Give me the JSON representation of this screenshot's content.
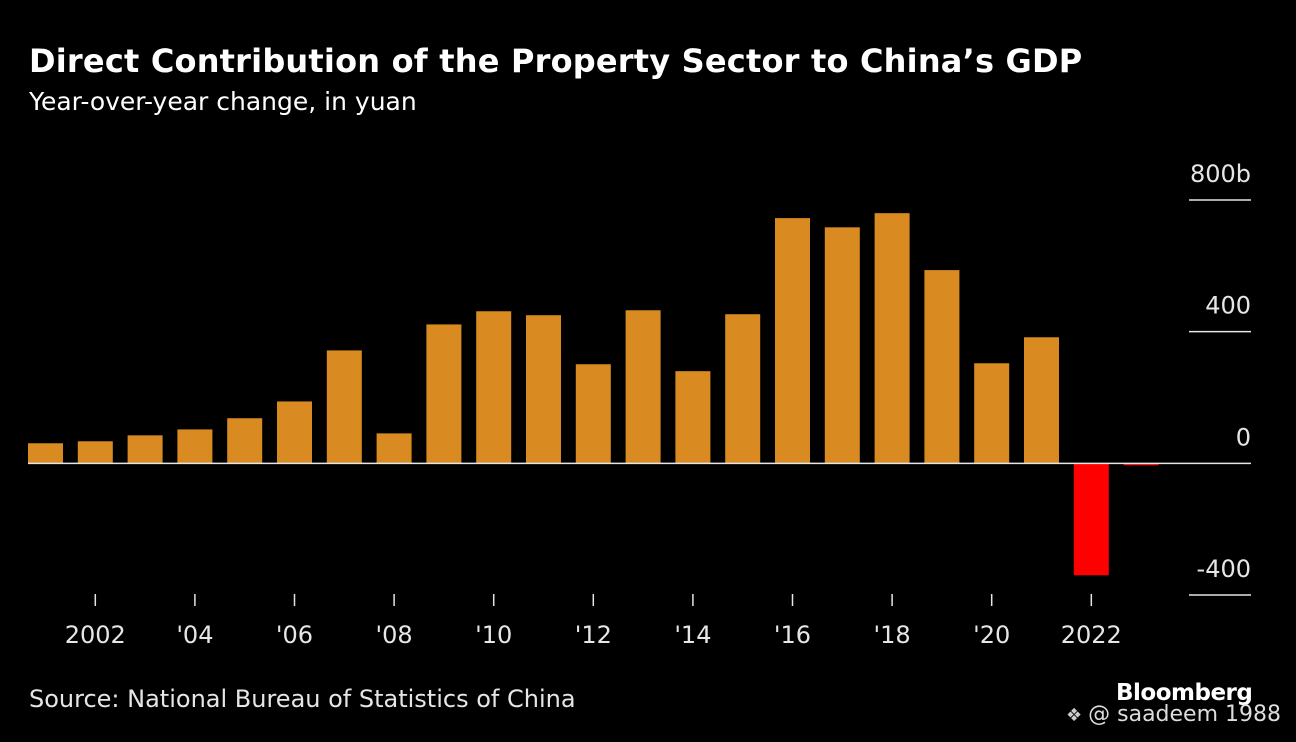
{
  "header": {
    "title": "Direct Contribution of the Property Sector to China’s GDP",
    "subtitle": "Year-over-year change, in yuan"
  },
  "footer": {
    "source": "Source: National Bureau of Statistics of China",
    "brand": "Bloomberg",
    "watermark": "@ saadeem 1988",
    "watermark_icon": "binance-diamond-icon"
  },
  "colors": {
    "positive": "#D98B22",
    "negative": "#FF0000",
    "background": "#000000",
    "axis": "#E6E6E6"
  },
  "chart_data": {
    "type": "bar",
    "title": "Direct Contribution of the Property Sector to China’s GDP",
    "subtitle": "Year-over-year change, in yuan",
    "xlabel": "",
    "ylabel": "",
    "unit": "billion yuan",
    "categories": [
      "2001",
      "2002",
      "2003",
      "2004",
      "2005",
      "2006",
      "2007",
      "2008",
      "2009",
      "2010",
      "2011",
      "2012",
      "2013",
      "2014",
      "2015",
      "2016",
      "2017",
      "2018",
      "2019",
      "2020",
      "2021",
      "2022",
      "2023"
    ],
    "values": [
      61,
      67,
      85,
      103,
      137,
      188,
      343,
      91,
      422,
      462,
      450,
      301,
      465,
      280,
      453,
      745,
      717,
      760,
      587,
      304,
      383,
      -340,
      -6
    ],
    "ylim": [
      -400,
      800
    ],
    "yticks": [
      {
        "value": 800,
        "label": "800b"
      },
      {
        "value": 400,
        "label": "400"
      },
      {
        "value": 0,
        "label": "0"
      },
      {
        "value": -400,
        "label": "-400"
      }
    ],
    "xticks": [
      {
        "category": "2002",
        "label": "2002"
      },
      {
        "category": "2004",
        "label": "'04"
      },
      {
        "category": "2006",
        "label": "'06"
      },
      {
        "category": "2008",
        "label": "'08"
      },
      {
        "category": "2010",
        "label": "'10"
      },
      {
        "category": "2012",
        "label": "'12"
      },
      {
        "category": "2014",
        "label": "'14"
      },
      {
        "category": "2016",
        "label": "'16"
      },
      {
        "category": "2018",
        "label": "'18"
      },
      {
        "category": "2020",
        "label": "'20"
      },
      {
        "category": "2022",
        "label": "2022"
      }
    ],
    "grid": false,
    "y_axis_position": "right",
    "legend": "none"
  }
}
